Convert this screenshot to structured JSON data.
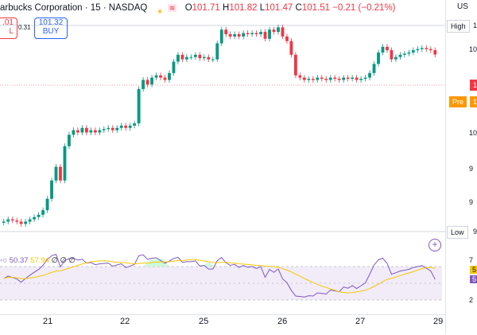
{
  "header": {
    "symbol_title": "arbucks Corporation · 15 · NASDAQ",
    "ohlc": [
      {
        "label": "O",
        "value": "101.71"
      },
      {
        "label": "H",
        "value": "101.82"
      },
      {
        "label": "L",
        "value": "101.47"
      },
      {
        "label": "C",
        "value": "101.51"
      }
    ],
    "change": "−0.21 (−0.21%)",
    "colors": {
      "down": "#f23645",
      "up": "#089981"
    }
  },
  "trade": {
    "sell_price": ".01",
    "sell_label": "L",
    "spread": "0.31",
    "buy_price": "101.32",
    "buy_label": "BUY"
  },
  "price_axis": {
    "currency": "US",
    "high_label": "High",
    "high_value": "10",
    "last_value": "10",
    "pre_label": "Pre",
    "pre_value": "10",
    "low_label": "Low",
    "low_value": "9",
    "ticks": [
      "10",
      "10",
      "9",
      "9"
    ]
  },
  "rsi": {
    "value1": "50.37",
    "value2": "57.94",
    "extra": "∅ ∅ ∅",
    "upper_label": "7",
    "lower_label": "2",
    "signal_tag": "5",
    "rsi_tag": "5"
  },
  "time_axis": {
    "labels": [
      "21",
      "22",
      "25",
      "26",
      "27",
      "29"
    ]
  },
  "icons": [
    "sun-icon",
    "waves-icon",
    "add-indicator-icon"
  ],
  "chart_data": {
    "type": "candlestick",
    "note": "",
    "candles_close": [
      94.2,
      94.3,
      94.25,
      94.2,
      94.1,
      94.2,
      94.3,
      94.4,
      94.5,
      94.7,
      95.2,
      96.0,
      96.6,
      96.0,
      97.5,
      98.0,
      98.2,
      98.1,
      98.3,
      98.1,
      98.2,
      98.1,
      98.2,
      98.25,
      98.3,
      98.2,
      98.3,
      98.4,
      98.3,
      98.4,
      98.5,
      100.0,
      100.4,
      100.2,
      100.5,
      100.6,
      100.5,
      100.4,
      100.7,
      101.2,
      101.5,
      101.3,
      101.4,
      101.4,
      101.5,
      101.35,
      101.4,
      101.3,
      101.3,
      102.0,
      102.6,
      102.4,
      102.3,
      102.4,
      102.3,
      102.45,
      102.4,
      102.45,
      102.4,
      102.5,
      102.2,
      102.6,
      102.5,
      102.7,
      102.3,
      102.1,
      101.5,
      100.6,
      100.5,
      100.4,
      100.45,
      100.4,
      100.5,
      100.45,
      100.4,
      100.5,
      100.45,
      100.4,
      100.5,
      100.45,
      100.5,
      100.4,
      100.45,
      100.5,
      100.7,
      101.1,
      101.6,
      101.85,
      101.7,
      101.3,
      101.4,
      101.5,
      101.55,
      101.6,
      101.7,
      101.75,
      101.8,
      101.75,
      101.7,
      101.51
    ],
    "y_range": [
      93.8,
      103.2
    ]
  }
}
